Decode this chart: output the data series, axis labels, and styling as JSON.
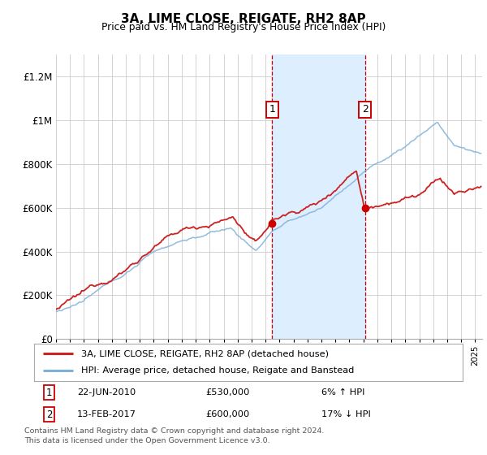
{
  "title": "3A, LIME CLOSE, REIGATE, RH2 8AP",
  "subtitle": "Price paid vs. HM Land Registry's House Price Index (HPI)",
  "legend_line1": "3A, LIME CLOSE, REIGATE, RH2 8AP (detached house)",
  "legend_line2": "HPI: Average price, detached house, Reigate and Banstead",
  "annotation1_date": "22-JUN-2010",
  "annotation1_price": "£530,000",
  "annotation1_hpi": "6% ↑ HPI",
  "annotation2_date": "13-FEB-2017",
  "annotation2_price": "£600,000",
  "annotation2_hpi": "17% ↓ HPI",
  "footnote": "Contains HM Land Registry data © Crown copyright and database right 2024.\nThis data is licensed under the Open Government Licence v3.0.",
  "xmin": 1995.0,
  "xmax": 2025.5,
  "ymin": 0,
  "ymax": 1300000,
  "yticks": [
    0,
    200000,
    400000,
    600000,
    800000,
    1000000,
    1200000
  ],
  "ytick_labels": [
    "£0",
    "£200K",
    "£400K",
    "£600K",
    "£800K",
    "£1M",
    "£1.2M"
  ],
  "shade_xstart": 2010.47,
  "shade_xend": 2017.12,
  "vline1_x": 2010.47,
  "vline2_x": 2017.12,
  "sale1_x": 2010.47,
  "sale1_y": 530000,
  "sale2_x": 2017.12,
  "sale2_y": 600000,
  "bg_color": "#ffffff",
  "shade_color": "#ddeeff",
  "vline_color": "#cc0000",
  "sale_dot_color": "#cc0000",
  "red_line_color": "#cc2222",
  "blue_line_color": "#7fb0d8"
}
